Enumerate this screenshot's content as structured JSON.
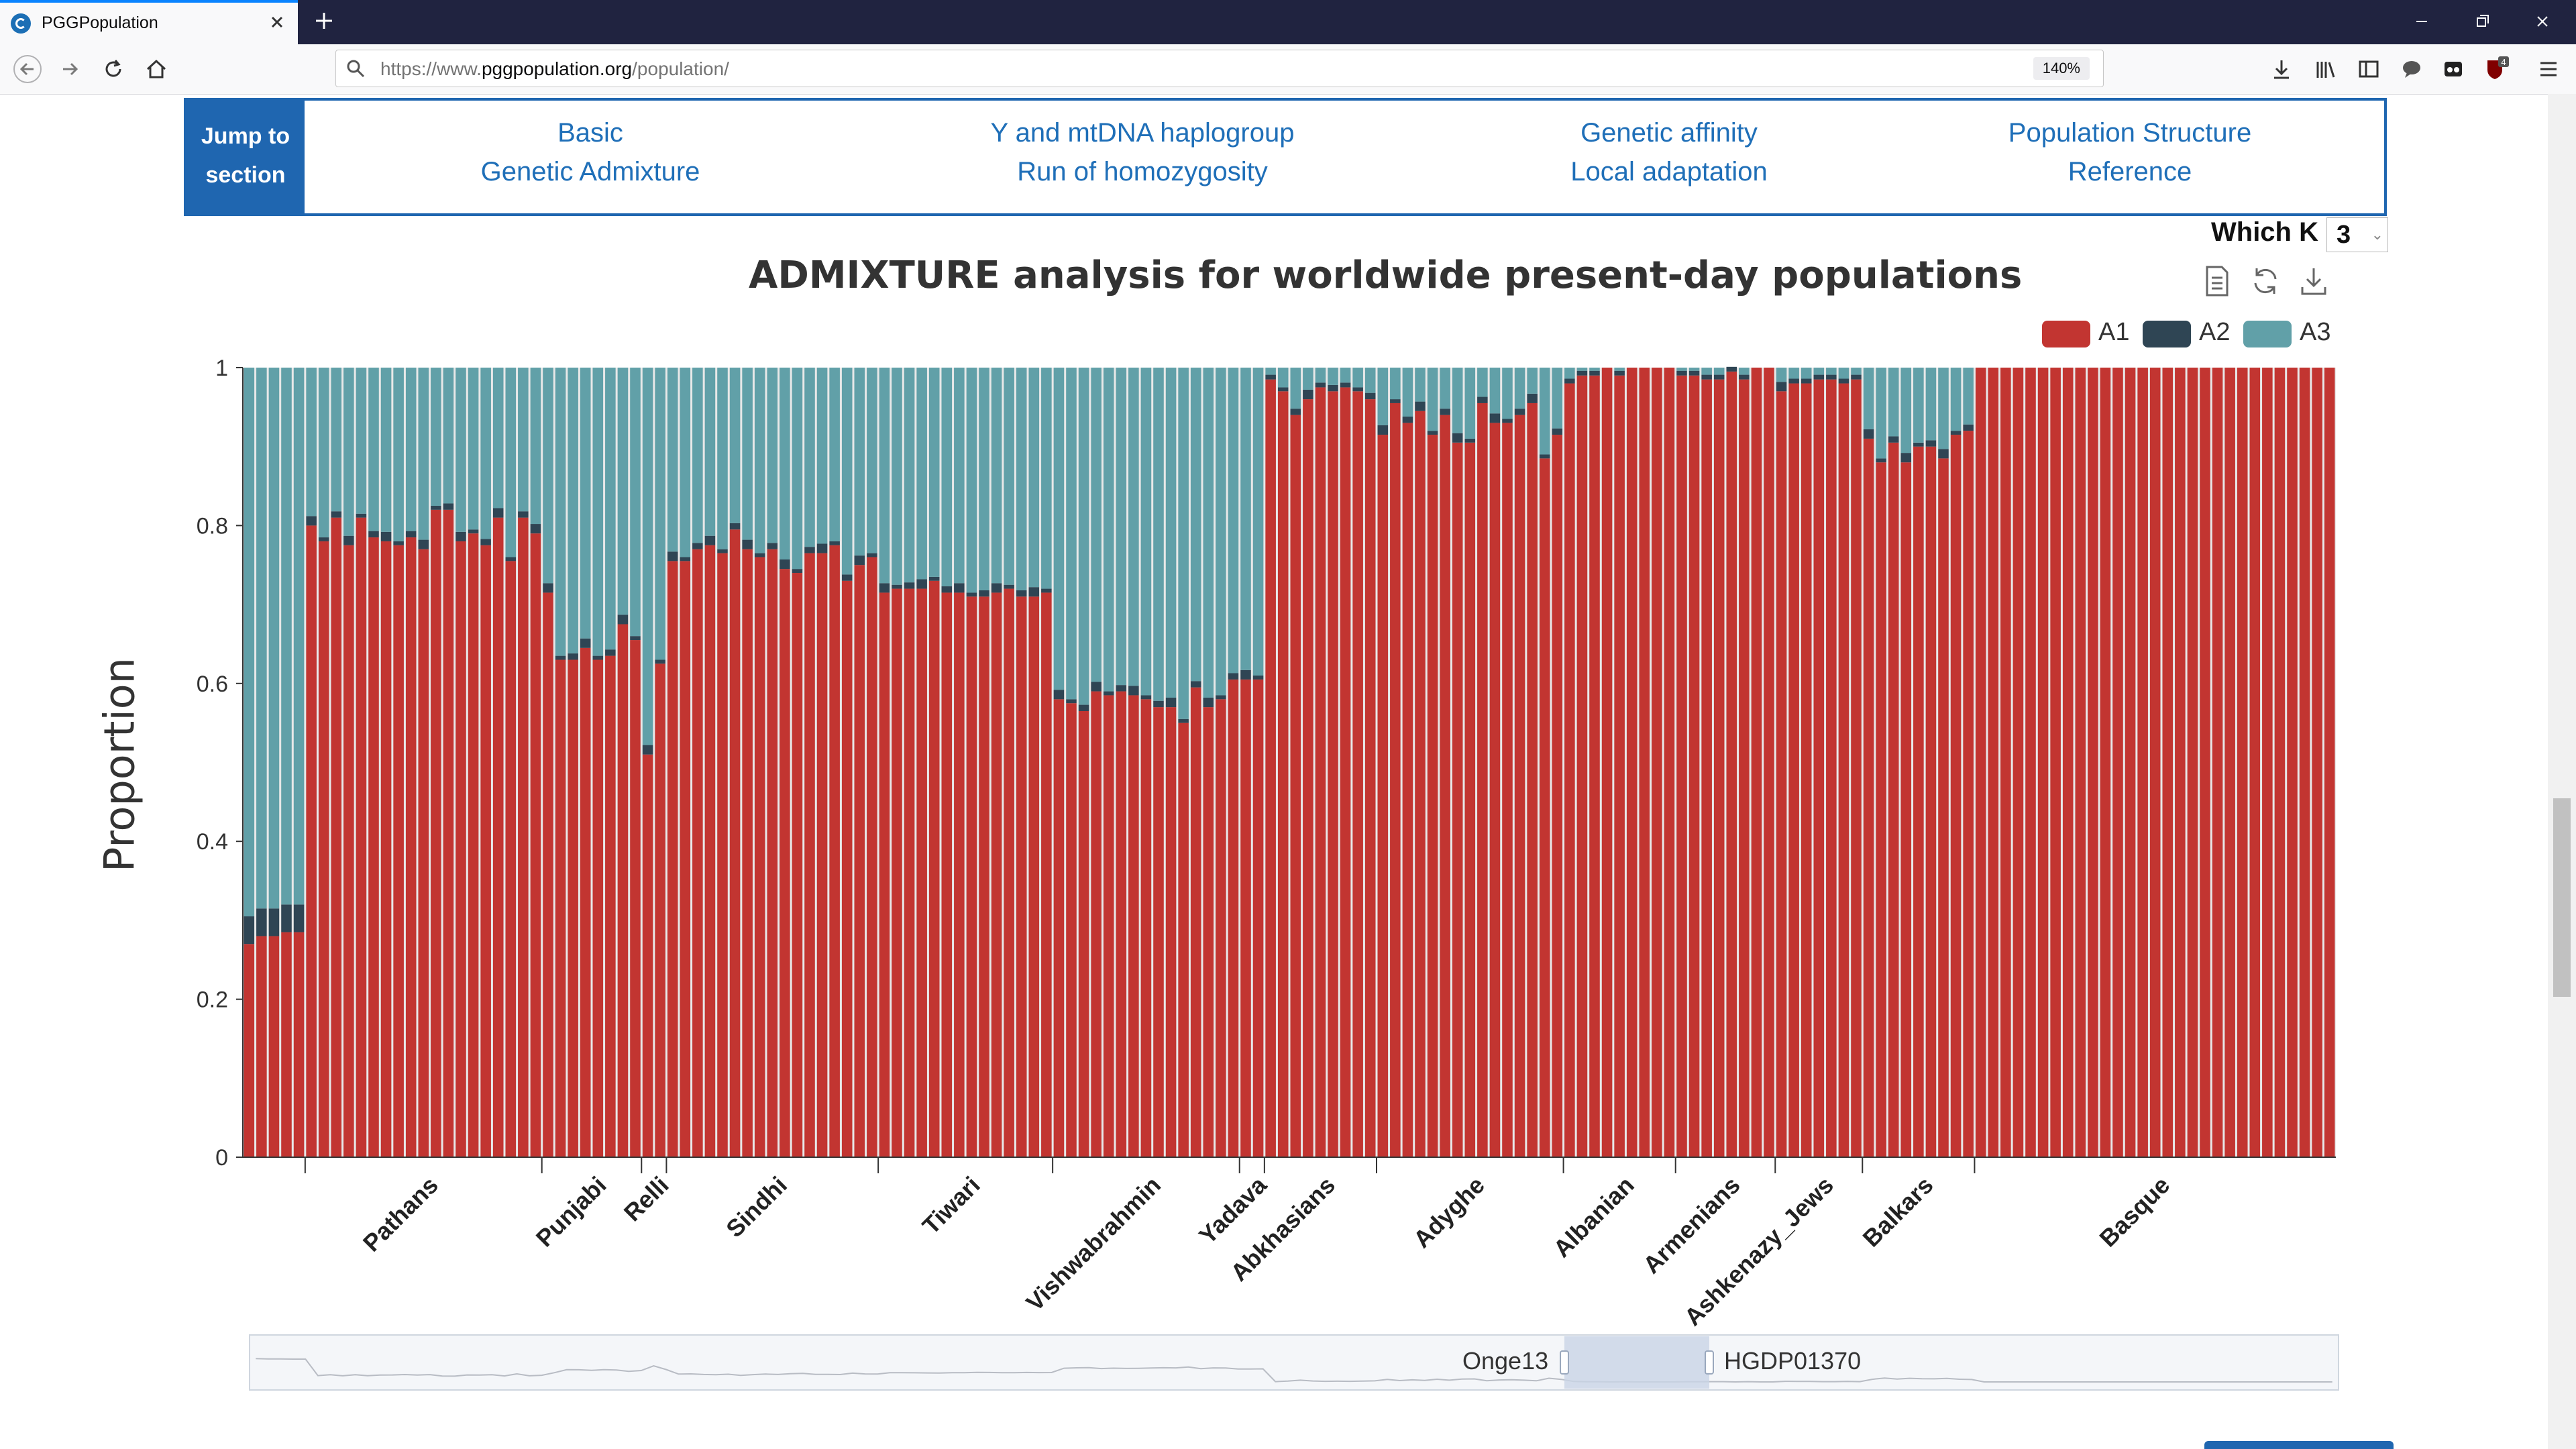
{
  "browser": {
    "tab_title": "PGGPopulation",
    "url_prefix": "https://www.",
    "url_host": "pggpopulation.org",
    "url_path": "/population/",
    "zoom": "140%",
    "toolbar_badge": "4"
  },
  "section_nav": {
    "jump_label_line1": "Jump to",
    "jump_label_line2": "section",
    "links": [
      "Basic",
      "Genetic Admixture",
      "Y and mtDNA haplogroup",
      "Run of homozygosity",
      "Genetic affinity",
      "Local adaptation",
      "Population Structure",
      "Reference"
    ]
  },
  "which_k": {
    "label": "Which K",
    "value": "3"
  },
  "chart_data": {
    "type": "bar",
    "stacked": true,
    "title": "ADMIXTURE analysis for worldwide present-day populations",
    "ylabel": "Proportion",
    "ylim": [
      0,
      1
    ],
    "yticks": [
      "0",
      "0.2",
      "0.4",
      "0.6",
      "0.8",
      "1"
    ],
    "legend": {
      "position": "top-right"
    },
    "grid": false,
    "series": [
      {
        "name": "A1",
        "color": "#c23531"
      },
      {
        "name": "A2",
        "color": "#2f4554"
      },
      {
        "name": "A3",
        "color": "#61a0a8"
      }
    ],
    "groups": [
      {
        "label": "",
        "a1": [
          0.27,
          0.28,
          0.28,
          0.285,
          0.285
        ]
      },
      {
        "label": "Pathans",
        "a1": [
          0.8,
          0.78,
          0.81,
          0.775,
          0.81,
          0.785,
          0.78,
          0.775,
          0.785,
          0.77,
          0.82,
          0.82,
          0.78,
          0.79,
          0.775,
          0.81,
          0.755,
          0.81,
          0.79
        ]
      },
      {
        "label": "Punjabi",
        "a1": [
          0.715,
          0.63,
          0.63,
          0.645,
          0.63,
          0.635,
          0.675,
          0.655
        ]
      },
      {
        "label": "Relli",
        "a1": [
          0.51,
          0.625
        ]
      },
      {
        "label": "Sindhi",
        "a1": [
          0.755,
          0.755,
          0.77,
          0.775,
          0.765,
          0.795,
          0.77,
          0.76,
          0.77,
          0.745,
          0.74,
          0.765,
          0.765,
          0.775,
          0.73,
          0.75,
          0.76
        ]
      },
      {
        "label": "Tiwari",
        "a1": [
          0.715,
          0.72,
          0.72,
          0.72,
          0.73,
          0.715,
          0.715,
          0.71,
          0.71,
          0.715,
          0.72,
          0.71,
          0.71,
          0.715
        ]
      },
      {
        "label": "Vishwabrahmin",
        "a1": [
          0.58,
          0.575,
          0.565,
          0.59,
          0.585,
          0.59,
          0.585,
          0.58,
          0.57,
          0.57,
          0.55,
          0.595,
          0.57,
          0.58,
          0.605
        ]
      },
      {
        "label": "Yadava",
        "a1": [
          0.605,
          0.605
        ]
      },
      {
        "label": "Abkhasians",
        "a1": [
          0.985,
          0.97,
          0.94,
          0.96,
          0.975,
          0.97,
          0.975,
          0.97,
          0.96
        ]
      },
      {
        "label": "Adyghe",
        "a1": [
          0.915,
          0.955,
          0.93,
          0.945,
          0.915,
          0.94,
          0.905,
          0.905,
          0.955,
          0.93,
          0.93,
          0.94,
          0.955,
          0.885,
          0.915
        ]
      },
      {
        "label": "Albanian",
        "a1": [
          0.98,
          0.99,
          0.99,
          1.0,
          0.99,
          1.0,
          1.0,
          1.0,
          1.0
        ]
      },
      {
        "label": "Armenians",
        "a1": [
          0.99,
          0.99,
          0.985,
          0.985,
          0.995,
          0.985,
          1.0,
          1.0
        ]
      },
      {
        "label": "Ashkenazy_Jews",
        "a1": [
          0.97,
          0.98,
          0.98,
          0.985,
          0.985,
          0.98,
          0.985
        ]
      },
      {
        "label": "Balkars",
        "a1": [
          0.91,
          0.88,
          0.905,
          0.88,
          0.9,
          0.9,
          0.885,
          0.915,
          0.92
        ]
      },
      {
        "label": "Basque",
        "a1": [
          1,
          1,
          1,
          1,
          1,
          1,
          1,
          1,
          1,
          1,
          1,
          1,
          1,
          1,
          1,
          1,
          1,
          1,
          1,
          1,
          1,
          1,
          1,
          1,
          1,
          1,
          1,
          1,
          1
        ]
      }
    ]
  },
  "datazoom": {
    "start_label": "Onge13",
    "end_label": "HGDP01370"
  },
  "icons": {
    "tab_favicon": "pgg-logo-icon",
    "chart_tools": [
      "data-view-icon",
      "restore-icon",
      "download-icon"
    ]
  }
}
